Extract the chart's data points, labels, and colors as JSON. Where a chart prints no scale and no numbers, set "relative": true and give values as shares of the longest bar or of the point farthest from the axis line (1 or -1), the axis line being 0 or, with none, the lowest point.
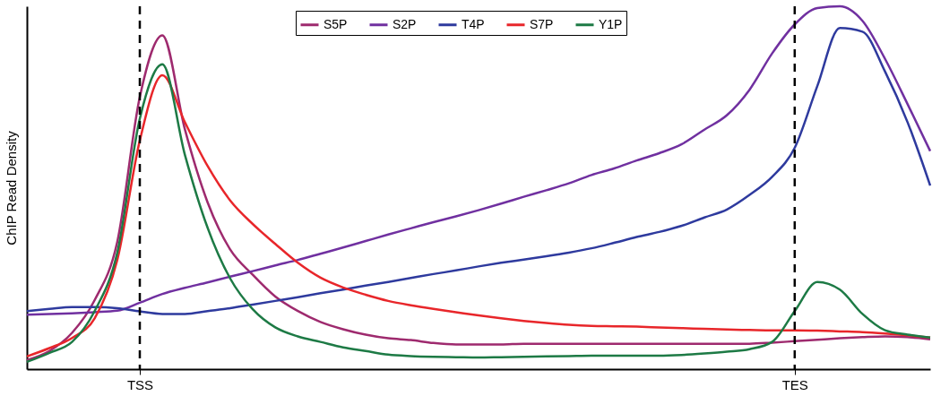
{
  "chart_data": {
    "type": "line",
    "ylabel": "ChIP Read Density",
    "relative": true,
    "categories": [
      null,
      null,
      null,
      null,
      null,
      "TSS",
      null,
      null,
      null,
      null,
      null,
      null,
      null,
      null,
      null,
      null,
      null,
      null,
      null,
      null,
      null,
      null,
      null,
      null,
      null,
      null,
      null,
      null,
      null,
      null,
      null,
      null,
      null,
      null,
      "TES",
      null,
      null,
      null,
      null,
      null,
      null
    ],
    "grid": false,
    "legend": "top",
    "line_style": "solid",
    "ref_lines": [
      {
        "axis": "x",
        "value": "TSS",
        "line_style": "dashed",
        "color": "#000000"
      },
      {
        "axis": "x",
        "value": "TES",
        "line_style": "dashed",
        "color": "#000000"
      }
    ],
    "series": [
      {
        "name": "S5P",
        "color": "#9e2a6e",
        "values": [
          0.025,
          0.05,
          0.1,
          0.19,
          0.35,
          0.75,
          0.92,
          0.66,
          0.46,
          0.33,
          0.26,
          0.2,
          0.16,
          0.13,
          0.11,
          0.095,
          0.085,
          0.08,
          0.072,
          0.068,
          0.068,
          0.068,
          0.07,
          0.07,
          0.07,
          0.07,
          0.07,
          0.07,
          0.07,
          0.07,
          0.07,
          0.07,
          0.07,
          0.073,
          0.077,
          0.081,
          0.085,
          0.088,
          0.09,
          0.088,
          0.082
        ]
      },
      {
        "name": "S2P",
        "color": "#7030a0",
        "values": [
          0.15,
          0.152,
          0.154,
          0.157,
          0.161,
          0.183,
          0.207,
          0.224,
          0.239,
          0.255,
          0.27,
          0.286,
          0.301,
          0.318,
          0.335,
          0.353,
          0.371,
          0.388,
          0.405,
          0.421,
          0.438,
          0.456,
          0.475,
          0.493,
          0.512,
          0.535,
          0.553,
          0.575,
          0.595,
          0.62,
          0.66,
          0.7,
          0.77,
          0.87,
          0.95,
          0.995,
          1,
          0.96,
          0.855,
          0.73,
          0.601
        ]
      },
      {
        "name": "T4P",
        "color": "#2e3a9e",
        "values": [
          0.16,
          0.166,
          0.171,
          0.171,
          0.168,
          0.159,
          0.152,
          0.152,
          0.16,
          0.168,
          0.178,
          0.188,
          0.198,
          0.209,
          0.219,
          0.23,
          0.24,
          0.251,
          0.262,
          0.272,
          0.283,
          0.293,
          0.302,
          0.311,
          0.321,
          0.333,
          0.348,
          0.364,
          0.378,
          0.395,
          0.418,
          0.44,
          0.48,
          0.53,
          0.61,
          0.78,
          0.94,
          0.93,
          0.82,
          0.68,
          0.506
        ]
      },
      {
        "name": "S7P",
        "color": "#e8262a",
        "values": [
          0.035,
          0.058,
          0.086,
          0.14,
          0.3,
          0.63,
          0.81,
          0.68,
          0.56,
          0.465,
          0.4,
          0.345,
          0.293,
          0.252,
          0.225,
          0.205,
          0.188,
          0.176,
          0.166,
          0.157,
          0.148,
          0.14,
          0.133,
          0.127,
          0.122,
          0.119,
          0.118,
          0.117,
          0.115,
          0.113,
          0.111,
          0.109,
          0.108,
          0.107,
          0.107,
          0.106,
          0.104,
          0.102,
          0.098,
          0.093,
          0.087
        ]
      },
      {
        "name": "Y1P",
        "color": "#1d7a45",
        "values": [
          0.02,
          0.045,
          0.075,
          0.16,
          0.32,
          0.69,
          0.84,
          0.59,
          0.39,
          0.25,
          0.165,
          0.115,
          0.09,
          0.075,
          0.06,
          0.05,
          0.04,
          0.036,
          0.034,
          0.033,
          0.032,
          0.033,
          0.034,
          0.035,
          0.036,
          0.037,
          0.037,
          0.037,
          0.037,
          0.039,
          0.043,
          0.048,
          0.055,
          0.075,
          0.16,
          0.24,
          0.219,
          0.152,
          0.107,
          0.095,
          0.087
        ]
      }
    ]
  }
}
